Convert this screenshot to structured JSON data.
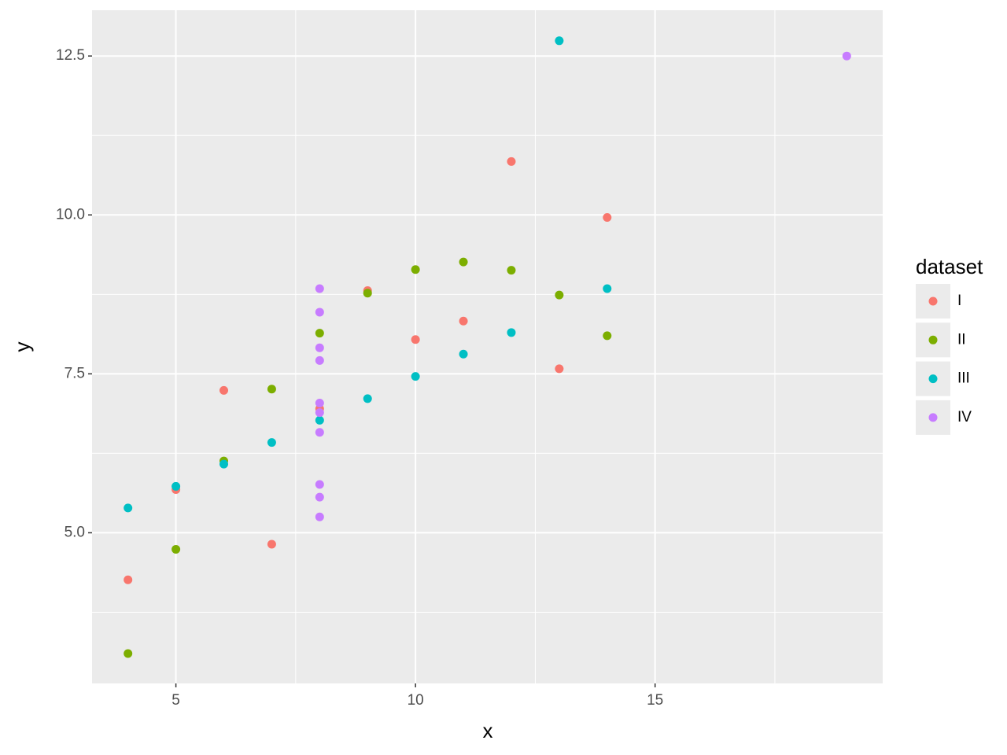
{
  "chart_data": {
    "type": "scatter",
    "x_label": "x",
    "y_label": "y",
    "xlim": [
      3.25,
      19.75
    ],
    "ylim": [
      2.63,
      13.22
    ],
    "xticks": [
      5,
      10,
      15
    ],
    "yticks": [
      {
        "value": 5,
        "label": "5.0"
      },
      7.5,
      {
        "value": 10,
        "label": "10.0"
      },
      12.5
    ],
    "x_minor_grid": [
      7.5,
      12.5,
      17.5
    ],
    "y_minor_grid": [
      3.75,
      6.25,
      8.75,
      11.25
    ],
    "grid": true,
    "legend_title": "dataset",
    "legend_position": "right",
    "series": [
      {
        "name": "I",
        "color": "#F8766D",
        "x": [
          10,
          8,
          13,
          9,
          11,
          14,
          6,
          4,
          12,
          7,
          5
        ],
        "values": [
          8.04,
          6.95,
          7.58,
          8.81,
          8.33,
          9.96,
          7.24,
          4.26,
          10.84,
          4.82,
          5.68
        ]
      },
      {
        "name": "II",
        "color": "#7CAE00",
        "x": [
          10,
          8,
          13,
          9,
          11,
          14,
          6,
          4,
          12,
          7,
          5
        ],
        "values": [
          9.14,
          8.14,
          8.74,
          8.77,
          9.26,
          8.1,
          6.13,
          3.1,
          9.13,
          7.26,
          4.74
        ]
      },
      {
        "name": "III",
        "color": "#00BFC4",
        "x": [
          10,
          8,
          13,
          9,
          11,
          14,
          6,
          4,
          12,
          7,
          5
        ],
        "values": [
          7.46,
          6.77,
          12.74,
          7.11,
          7.81,
          8.84,
          6.08,
          5.39,
          8.15,
          6.42,
          5.73
        ]
      },
      {
        "name": "IV",
        "color": "#C77CFF",
        "x": [
          8,
          8,
          8,
          8,
          8,
          8,
          8,
          19,
          8,
          8,
          8
        ],
        "values": [
          6.58,
          5.76,
          7.71,
          8.84,
          8.47,
          7.04,
          5.25,
          12.5,
          5.56,
          7.91,
          6.89
        ]
      }
    ]
  }
}
